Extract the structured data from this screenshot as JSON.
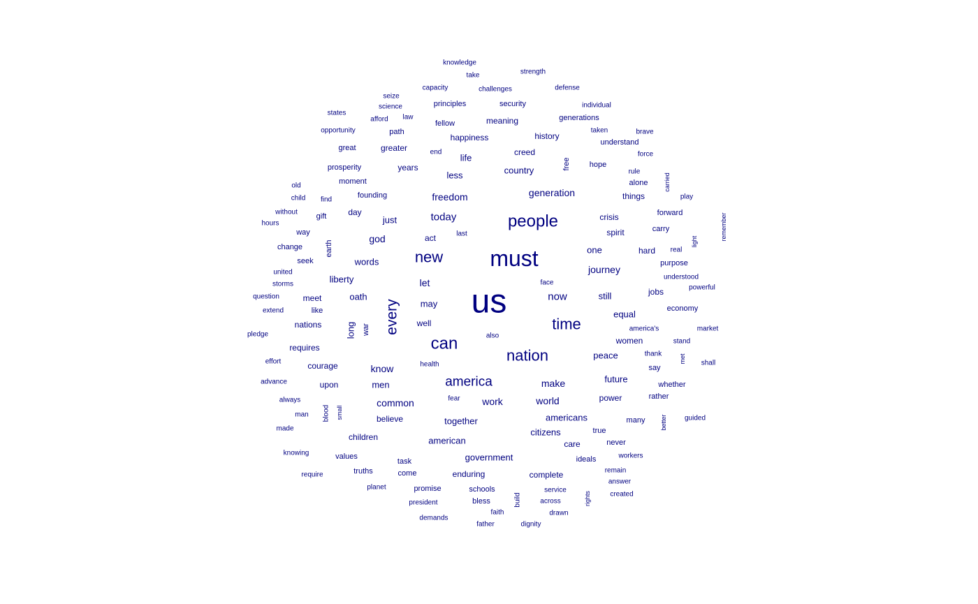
{
  "wordcloud": {
    "color": "#000080",
    "words": [
      {
        "text": "us",
        "rotated": false
      },
      {
        "text": "must",
        "rotated": false
      },
      {
        "text": "people",
        "rotated": false
      },
      {
        "text": "new",
        "rotated": false
      },
      {
        "text": "can",
        "rotated": false
      },
      {
        "text": "nation",
        "rotated": false
      },
      {
        "text": "time",
        "rotated": false
      },
      {
        "text": "every",
        "rotated": true
      },
      {
        "text": "america",
        "rotated": false
      },
      {
        "text": "generation",
        "rotated": false
      },
      {
        "text": "freedom",
        "rotated": false
      },
      {
        "text": "today",
        "rotated": false
      },
      {
        "text": "now",
        "rotated": false
      },
      {
        "text": "journey",
        "rotated": false
      },
      {
        "text": "make",
        "rotated": false
      },
      {
        "text": "work",
        "rotated": false
      },
      {
        "text": "common",
        "rotated": false
      },
      {
        "text": "world",
        "rotated": false
      },
      {
        "text": "americans",
        "rotated": false
      },
      {
        "text": "together",
        "rotated": false
      },
      {
        "text": "american",
        "rotated": false
      },
      {
        "text": "government",
        "rotated": false
      },
      {
        "text": "country",
        "rotated": false
      },
      {
        "text": "words",
        "rotated": false
      },
      {
        "text": "liberty",
        "rotated": false
      },
      {
        "text": "let",
        "rotated": false
      },
      {
        "text": "oath",
        "rotated": false
      },
      {
        "text": "god",
        "rotated": false
      },
      {
        "text": "just",
        "rotated": false
      },
      {
        "text": "may",
        "rotated": false
      },
      {
        "text": "well",
        "rotated": false
      },
      {
        "text": "know",
        "rotated": false
      },
      {
        "text": "men",
        "rotated": false
      },
      {
        "text": "long",
        "rotated": true
      },
      {
        "text": "one",
        "rotated": false
      },
      {
        "text": "still",
        "rotated": false
      },
      {
        "text": "equal",
        "rotated": false
      },
      {
        "text": "women",
        "rotated": false
      },
      {
        "text": "peace",
        "rotated": false
      },
      {
        "text": "future",
        "rotated": false
      },
      {
        "text": "power",
        "rotated": false
      },
      {
        "text": "citizens",
        "rotated": false
      },
      {
        "text": "believe",
        "rotated": false
      },
      {
        "text": "children",
        "rotated": false
      },
      {
        "text": "enduring",
        "rotated": false
      },
      {
        "text": "complete",
        "rotated": false
      },
      {
        "text": "years",
        "rotated": false
      },
      {
        "text": "less",
        "rotated": false
      },
      {
        "text": "life",
        "rotated": false
      },
      {
        "text": "creed",
        "rotated": false
      },
      {
        "text": "meaning",
        "rotated": false
      },
      {
        "text": "happiness",
        "rotated": false
      },
      {
        "text": "history",
        "rotated": false
      },
      {
        "text": "greater",
        "rotated": false
      },
      {
        "text": "founding",
        "rotated": false
      },
      {
        "text": "moment",
        "rotated": false
      },
      {
        "text": "day",
        "rotated": false
      },
      {
        "text": "crisis",
        "rotated": false
      },
      {
        "text": "spirit",
        "rotated": false
      },
      {
        "text": "hope",
        "rotated": false
      },
      {
        "text": "things",
        "rotated": false
      },
      {
        "text": "hard",
        "rotated": false
      },
      {
        "text": "jobs",
        "rotated": false
      },
      {
        "text": "care",
        "rotated": false
      },
      {
        "text": "ideals",
        "rotated": false
      },
      {
        "text": "meet",
        "rotated": false
      },
      {
        "text": "nations",
        "rotated": false
      },
      {
        "text": "requires",
        "rotated": false
      },
      {
        "text": "courage",
        "rotated": false
      },
      {
        "text": "upon",
        "rotated": false
      },
      {
        "text": "values",
        "rotated": false
      },
      {
        "text": "truths",
        "rotated": false
      },
      {
        "text": "promise",
        "rotated": false
      },
      {
        "text": "schools",
        "rotated": false
      },
      {
        "text": "bless",
        "rotated": false
      },
      {
        "text": "act",
        "rotated": false
      },
      {
        "text": "principles",
        "rotated": false
      },
      {
        "text": "security",
        "rotated": false
      },
      {
        "text": "generations",
        "rotated": false
      },
      {
        "text": "fellow",
        "rotated": false
      },
      {
        "text": "understand",
        "rotated": false
      },
      {
        "text": "alone",
        "rotated": false
      },
      {
        "text": "forward",
        "rotated": false
      },
      {
        "text": "carry",
        "rotated": false
      },
      {
        "text": "purpose",
        "rotated": false
      },
      {
        "text": "economy",
        "rotated": false
      },
      {
        "text": "say",
        "rotated": false
      },
      {
        "text": "whether",
        "rotated": false
      },
      {
        "text": "rather",
        "rotated": false
      },
      {
        "text": "many",
        "rotated": false
      },
      {
        "text": "true",
        "rotated": false
      },
      {
        "text": "never",
        "rotated": false
      },
      {
        "text": "path",
        "rotated": false
      },
      {
        "text": "great",
        "rotated": false
      },
      {
        "text": "prosperity",
        "rotated": false
      },
      {
        "text": "seek",
        "rotated": false
      },
      {
        "text": "change",
        "rotated": false
      },
      {
        "text": "way",
        "rotated": false
      },
      {
        "text": "find",
        "rotated": false
      },
      {
        "text": "gift",
        "rotated": false
      },
      {
        "text": "like",
        "rotated": false
      },
      {
        "text": "task",
        "rotated": false
      },
      {
        "text": "come",
        "rotated": false
      },
      {
        "text": "free",
        "rotated": true
      },
      {
        "text": "earth",
        "rotated": true
      },
      {
        "text": "war",
        "rotated": true
      },
      {
        "text": "blood",
        "rotated": true
      },
      {
        "text": "build",
        "rotated": true
      },
      {
        "text": "knowledge",
        "rotated": false
      },
      {
        "text": "take",
        "rotated": false
      },
      {
        "text": "strength",
        "rotated": false
      },
      {
        "text": "capacity",
        "rotated": false
      },
      {
        "text": "challenges",
        "rotated": false
      },
      {
        "text": "defense",
        "rotated": false
      },
      {
        "text": "seize",
        "rotated": false
      },
      {
        "text": "science",
        "rotated": false
      },
      {
        "text": "individual",
        "rotated": false
      },
      {
        "text": "states",
        "rotated": false
      },
      {
        "text": "afford",
        "rotated": false
      },
      {
        "text": "law",
        "rotated": false
      },
      {
        "text": "taken",
        "rotated": false
      },
      {
        "text": "brave",
        "rotated": false
      },
      {
        "text": "opportunity",
        "rotated": false
      },
      {
        "text": "end",
        "rotated": false
      },
      {
        "text": "force",
        "rotated": false
      },
      {
        "text": "rule",
        "rotated": false
      },
      {
        "text": "old",
        "rotated": false
      },
      {
        "text": "child",
        "rotated": false
      },
      {
        "text": "play",
        "rotated": false
      },
      {
        "text": "without",
        "rotated": false
      },
      {
        "text": "hours",
        "rotated": false
      },
      {
        "text": "last",
        "rotated": false
      },
      {
        "text": "real",
        "rotated": false
      },
      {
        "text": "united",
        "rotated": false
      },
      {
        "text": "storms",
        "rotated": false
      },
      {
        "text": "face",
        "rotated": false
      },
      {
        "text": "understood",
        "rotated": false
      },
      {
        "text": "powerful",
        "rotated": false
      },
      {
        "text": "question",
        "rotated": false
      },
      {
        "text": "extend",
        "rotated": false
      },
      {
        "text": "america's",
        "rotated": false
      },
      {
        "text": "market",
        "rotated": false
      },
      {
        "text": "pledge",
        "rotated": false
      },
      {
        "text": "also",
        "rotated": false
      },
      {
        "text": "stand",
        "rotated": false
      },
      {
        "text": "thank",
        "rotated": false
      },
      {
        "text": "effort",
        "rotated": false
      },
      {
        "text": "health",
        "rotated": false
      },
      {
        "text": "shall",
        "rotated": false
      },
      {
        "text": "advance",
        "rotated": false
      },
      {
        "text": "always",
        "rotated": false
      },
      {
        "text": "fear",
        "rotated": false
      },
      {
        "text": "man",
        "rotated": false
      },
      {
        "text": "guided",
        "rotated": false
      },
      {
        "text": "made",
        "rotated": false
      },
      {
        "text": "knowing",
        "rotated": false
      },
      {
        "text": "workers",
        "rotated": false
      },
      {
        "text": "require",
        "rotated": false
      },
      {
        "text": "remain",
        "rotated": false
      },
      {
        "text": "answer",
        "rotated": false
      },
      {
        "text": "planet",
        "rotated": false
      },
      {
        "text": "service",
        "rotated": false
      },
      {
        "text": "created",
        "rotated": false
      },
      {
        "text": "president",
        "rotated": false
      },
      {
        "text": "across",
        "rotated": false
      },
      {
        "text": "faith",
        "rotated": false
      },
      {
        "text": "drawn",
        "rotated": false
      },
      {
        "text": "demands",
        "rotated": false
      },
      {
        "text": "father",
        "rotated": false
      },
      {
        "text": "dignity",
        "rotated": false
      },
      {
        "text": "carried",
        "rotated": true
      },
      {
        "text": "remember",
        "rotated": true
      },
      {
        "text": "light",
        "rotated": true
      },
      {
        "text": "met",
        "rotated": true
      },
      {
        "text": "small",
        "rotated": true
      },
      {
        "text": "better",
        "rotated": true
      },
      {
        "text": "rights",
        "rotated": true
      }
    ]
  }
}
